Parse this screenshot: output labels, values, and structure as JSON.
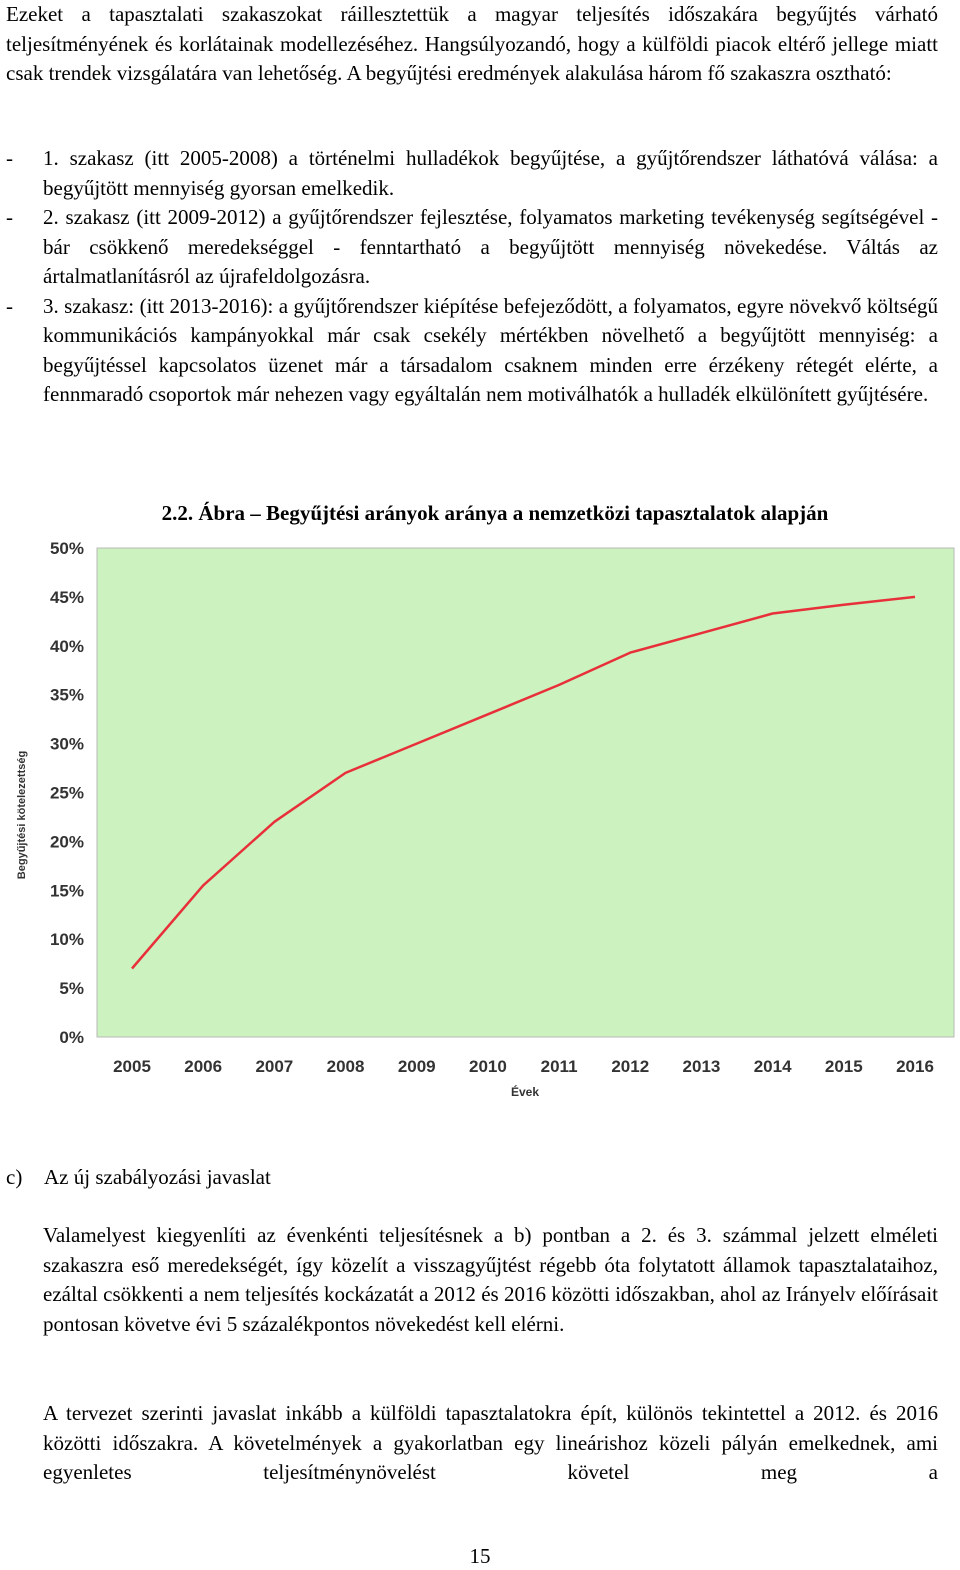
{
  "intro": "Ezeket a tapasztalati szakaszokat ráillesztettük a magyar teljesítés időszakára begyűjtés várható teljesítményének és korlátainak modellezéséhez. Hangsúlyozandó, hogy a külföldi piacok eltérő jellege miatt csak trendek vizsgálatára van lehetőség. A begyűjtési eredmények alakulása három fő szakaszra osztható:",
  "phases": [
    {
      "dash": "-",
      "text": "1. szakasz (itt 2005-2008) a történelmi hulladékok begyűjtése, a gyűjtőrendszer láthatóvá válása: a begyűjtött mennyiség gyorsan emelkedik."
    },
    {
      "dash": "-",
      "text": "2. szakasz (itt 2009-2012) a gyűjtőrendszer fejlesztése, folyamatos marketing tevékenység segítségével - bár csökkenő meredekséggel - fenntartható a begyűjtött mennyiség növekedése. Váltás az ártalmatlanításról az újrafeldolgozásra."
    },
    {
      "dash": "-",
      "text": "3. szakasz: (itt 2013-2016): a gyűjtőrendszer kiépítése befejeződött, a folyamatos, egyre növekvő költségű kommunikációs kampányokkal már csak csekély mértékben növelhető a begyűjtött mennyiség: a begyűjtéssel kapcsolatos üzenet már a társadalom csaknem minden erre érzékeny rétegét elérte, a fennmaradó csoportok már nehezen vagy egyáltalán nem motiválhatók a hulladék elkülönített gyűjtésére."
    }
  ],
  "figure_caption": "2.2. Ábra – Begyűjtési arányok aránya a nemzetközi tapasztalatok alapján",
  "chart_data": {
    "type": "line",
    "title": "2.2. Ábra – Begyűjtési arányok aránya a nemzetközi tapasztalatok alapján",
    "xlabel": "Évek",
    "ylabel": "Begyűjtési kötelezettség",
    "categories": [
      "2005",
      "2006",
      "2007",
      "2008",
      "2009",
      "2010",
      "2011",
      "2012",
      "2013",
      "2014",
      "2015",
      "2016"
    ],
    "series": [
      {
        "values": [
          7,
          15.5,
          22,
          27,
          30,
          33,
          36,
          39.3,
          41.3,
          43.3,
          44.2,
          45
        ]
      }
    ],
    "y_ticks": [
      "0%",
      "5%",
      "10%",
      "15%",
      "20%",
      "25%",
      "30%",
      "35%",
      "40%",
      "45%",
      "50%"
    ],
    "ylim": [
      0,
      50
    ],
    "grid": false,
    "legend": "none",
    "colors": {
      "plot_background": "#ccf2bf",
      "line": "#e8303a",
      "axis_text": "#333333"
    }
  },
  "section_c": {
    "mark": "c)",
    "title": "Az új szabályozási javaslat"
  },
  "para_a": "Valamelyest kiegyenlíti az évenkénti teljesítésnek a b) pontban a 2. és 3. számmal jelzett elméleti szakaszra eső meredekségét, így közelít a visszagyűjtést régebb óta folytatott államok tapasztalataihoz, ezáltal csökkenti a nem teljesítés kockázatát a 2012 és 2016 közötti időszakban, ahol az Irányelv előírásait pontosan követve évi 5 százalékpontos növekedést kell elérni.",
  "para_b": "A tervezet szerinti javaslat inkább a külföldi tapasztalatokra épít, különös tekintettel a 2012. és 2016 közötti időszakra. A követelmények a gyakorlatban egy lineárishoz közeli pályán emelkednek, ami egyenletes teljesítménynövelést követel meg a",
  "page_number": "15"
}
